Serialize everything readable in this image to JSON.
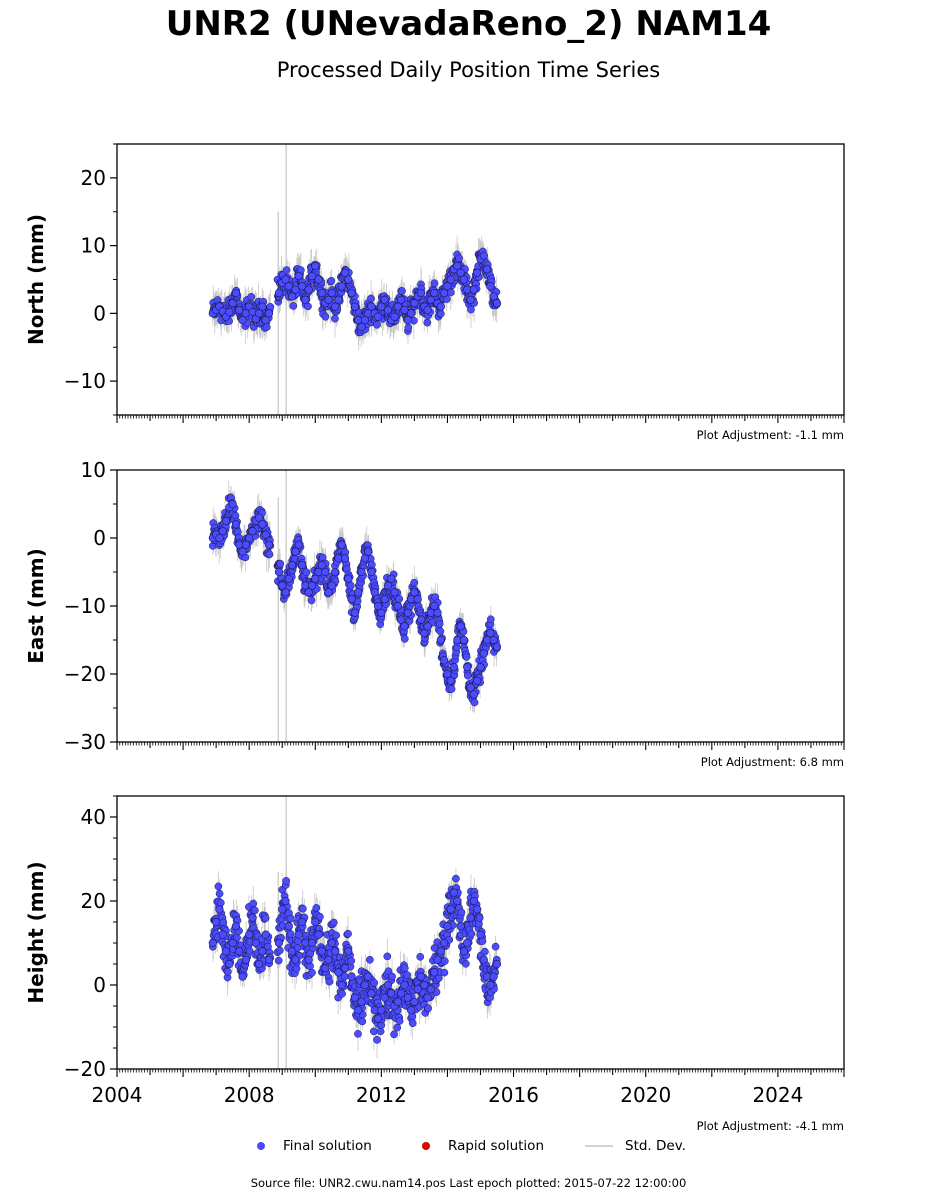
{
  "title": "UNR2 (UNevadaReno_2) NAM14",
  "subtitle": "Processed Daily Position Time Series",
  "legend": {
    "final": "Final solution",
    "rapid": "Rapid solution",
    "stddev": "Std. Dev."
  },
  "source_text": "Source file: UNR2.cwu.nam14.pos  Last epoch plotted: 2015-07-22 12:00:00",
  "colors": {
    "final": "#4b4bff",
    "rapid": "#e00000",
    "stddev": "#c8c8c8"
  },
  "chart_data": [
    {
      "type": "scatter",
      "ylabel": "North (mm)",
      "xlim": [
        2004,
        2026
      ],
      "ylim": [
        -15,
        25
      ],
      "yticks": [
        -10,
        0,
        10,
        20
      ],
      "ytick_labels": [
        "−10",
        "0",
        "10",
        "20"
      ],
      "adjustment": "Plot Adjustment: -1.1 mm",
      "x_labels_shown": false,
      "series": [
        {
          "name": "Final solution",
          "x": [
            2006.9,
            2007.0,
            2007.1,
            2007.2,
            2007.3,
            2007.4,
            2007.5,
            2007.6,
            2007.7,
            2007.8,
            2007.9,
            2008.0,
            2008.1,
            2008.2,
            2008.3,
            2008.4,
            2008.5,
            2008.6,
            2008.9,
            2009.0,
            2009.1,
            2009.2,
            2009.3,
            2009.4,
            2009.5,
            2009.6,
            2009.7,
            2009.8,
            2009.9,
            2010.0,
            2010.1,
            2010.2,
            2010.3,
            2010.4,
            2010.5,
            2010.6,
            2010.7,
            2010.8,
            2010.9,
            2011.0,
            2011.1,
            2011.2,
            2011.3,
            2011.4,
            2011.5,
            2011.6,
            2011.7,
            2011.8,
            2011.9,
            2012.0,
            2012.1,
            2012.2,
            2012.3,
            2012.4,
            2012.5,
            2012.6,
            2012.7,
            2012.8,
            2012.9,
            2013.0,
            2013.1,
            2013.2,
            2013.3,
            2013.4,
            2013.5,
            2013.6,
            2013.7,
            2013.8,
            2013.9,
            2014.0,
            2014.1,
            2014.2,
            2014.3,
            2014.4,
            2014.5,
            2014.6,
            2014.7,
            2014.8,
            2014.9,
            2015.0,
            2015.1,
            2015.2,
            2015.3,
            2015.4,
            2015.5
          ],
          "y": [
            0.0,
            0.5,
            1.0,
            0.3,
            -0.5,
            0.2,
            1.5,
            3.0,
            0.5,
            -1.0,
            0.0,
            1.0,
            0.2,
            -0.8,
            0.0,
            1.0,
            -1.0,
            0.0,
            3.0,
            4.5,
            5.0,
            4.0,
            2.5,
            3.5,
            5.5,
            4.0,
            2.0,
            3.5,
            5.5,
            7.0,
            5.0,
            3.0,
            1.5,
            2.0,
            3.0,
            1.0,
            2.0,
            4.0,
            6.0,
            5.0,
            3.0,
            1.0,
            -1.0,
            -2.0,
            -1.0,
            0.0,
            1.0,
            0.0,
            -0.5,
            1.0,
            2.0,
            0.5,
            -1.0,
            -0.5,
            1.0,
            2.0,
            0.5,
            -1.0,
            0.0,
            1.5,
            2.5,
            3.0,
            1.0,
            0.5,
            2.0,
            3.0,
            1.5,
            1.0,
            3.0,
            4.0,
            5.0,
            6.5,
            7.0,
            6.0,
            5.0,
            3.5,
            2.0,
            3.5,
            6.0,
            8.0,
            8.5,
            6.5,
            4.0,
            2.5,
            1.5
          ]
        }
      ]
    },
    {
      "type": "scatter",
      "ylabel": "East (mm)",
      "xlim": [
        2004,
        2026
      ],
      "ylim": [
        -30,
        10
      ],
      "yticks": [
        -30,
        -20,
        -10,
        0,
        10
      ],
      "ytick_labels": [
        "−30",
        "−20",
        "−10",
        "0",
        "10"
      ],
      "adjustment": "Plot Adjustment: 6.8 mm",
      "x_labels_shown": false,
      "series": [
        {
          "name": "Final solution",
          "x": [
            2006.9,
            2007.0,
            2007.1,
            2007.2,
            2007.3,
            2007.4,
            2007.5,
            2007.6,
            2007.7,
            2007.8,
            2007.9,
            2008.0,
            2008.1,
            2008.2,
            2008.3,
            2008.4,
            2008.5,
            2008.6,
            2008.9,
            2009.0,
            2009.1,
            2009.2,
            2009.3,
            2009.4,
            2009.5,
            2009.6,
            2009.7,
            2009.8,
            2009.9,
            2010.0,
            2010.1,
            2010.2,
            2010.3,
            2010.4,
            2010.5,
            2010.6,
            2010.7,
            2010.8,
            2010.9,
            2011.0,
            2011.1,
            2011.2,
            2011.3,
            2011.4,
            2011.5,
            2011.6,
            2011.7,
            2011.8,
            2011.9,
            2012.0,
            2012.1,
            2012.2,
            2012.3,
            2012.4,
            2012.5,
            2012.6,
            2012.7,
            2012.8,
            2012.9,
            2013.0,
            2013.1,
            2013.2,
            2013.3,
            2013.4,
            2013.5,
            2013.6,
            2013.7,
            2013.8,
            2013.9,
            2014.0,
            2014.1,
            2014.2,
            2014.3,
            2014.4,
            2014.5,
            2014.6,
            2014.7,
            2014.8,
            2014.9,
            2015.0,
            2015.1,
            2015.2,
            2015.3,
            2015.4,
            2015.5
          ],
          "y": [
            0.0,
            0.5,
            0.0,
            1.0,
            2.5,
            4.5,
            5.0,
            2.0,
            -1.0,
            -2.0,
            -1.0,
            0.0,
            1.0,
            2.5,
            3.0,
            2.0,
            0.5,
            -1.0,
            -5.0,
            -7.0,
            -8.0,
            -6.0,
            -4.0,
            -2.0,
            -1.0,
            -4.0,
            -7.0,
            -8.0,
            -7.0,
            -6.0,
            -5.0,
            -4.0,
            -5.0,
            -8.0,
            -7.0,
            -5.0,
            -3.0,
            -1.0,
            -3.0,
            -6.0,
            -9.0,
            -11.0,
            -8.0,
            -5.0,
            -3.0,
            -2.0,
            -5.0,
            -8.0,
            -10.0,
            -11.0,
            -9.0,
            -7.0,
            -6.0,
            -8.0,
            -10.0,
            -12.0,
            -13.0,
            -11.0,
            -9.0,
            -8.0,
            -9.0,
            -12.0,
            -14.0,
            -13.0,
            -11.0,
            -10.0,
            -11.0,
            -15.0,
            -18.0,
            -20.0,
            -21.0,
            -19.0,
            -15.0,
            -13.0,
            -15.0,
            -19.0,
            -22.0,
            -23.0,
            -21.0,
            -19.0,
            -17.0,
            -15.0,
            -14.0,
            -15.0,
            -16.0
          ]
        }
      ]
    },
    {
      "type": "scatter",
      "ylabel": "Height (mm)",
      "xlim": [
        2004,
        2026
      ],
      "ylim": [
        -20,
        45
      ],
      "yticks": [
        -20,
        0,
        20,
        40
      ],
      "ytick_labels": [
        "−20",
        "0",
        "20",
        "40"
      ],
      "adjustment": "Plot Adjustment: -4.1 mm",
      "x_labels_shown": true,
      "xticks": [
        2004,
        2008,
        2012,
        2016,
        2020,
        2024
      ],
      "xtick_labels": [
        "2004",
        "2008",
        "2012",
        "2016",
        "2020",
        "2024"
      ],
      "series": [
        {
          "name": "Final solution",
          "x": [
            2006.9,
            2007.0,
            2007.1,
            2007.2,
            2007.3,
            2007.4,
            2007.5,
            2007.6,
            2007.7,
            2007.8,
            2007.9,
            2008.0,
            2008.1,
            2008.2,
            2008.3,
            2008.4,
            2008.5,
            2008.6,
            2008.9,
            2009.0,
            2009.1,
            2009.2,
            2009.3,
            2009.4,
            2009.5,
            2009.6,
            2009.7,
            2009.8,
            2009.9,
            2010.0,
            2010.1,
            2010.2,
            2010.3,
            2010.4,
            2010.5,
            2010.6,
            2010.7,
            2010.8,
            2010.9,
            2011.0,
            2011.1,
            2011.2,
            2011.3,
            2011.4,
            2011.5,
            2011.6,
            2011.7,
            2011.8,
            2011.9,
            2012.0,
            2012.1,
            2012.2,
            2012.3,
            2012.4,
            2012.5,
            2012.6,
            2012.7,
            2012.8,
            2012.9,
            2013.0,
            2013.1,
            2013.2,
            2013.3,
            2013.4,
            2013.5,
            2013.6,
            2013.7,
            2013.8,
            2013.9,
            2014.0,
            2014.1,
            2014.2,
            2014.3,
            2014.4,
            2014.5,
            2014.6,
            2014.7,
            2014.8,
            2014.9,
            2015.0,
            2015.1,
            2015.2,
            2015.3,
            2015.4,
            2015.5
          ],
          "y": [
            10.0,
            15.0,
            18.0,
            12.0,
            8.0,
            5.0,
            10.0,
            14.0,
            8.0,
            2.0,
            6.0,
            12.0,
            16.0,
            10.0,
            5.0,
            8.0,
            12.0,
            6.0,
            10.0,
            18.0,
            20.0,
            14.0,
            8.0,
            6.0,
            12.0,
            15.0,
            10.0,
            6.0,
            10.0,
            15.0,
            12.0,
            8.0,
            4.0,
            6.0,
            10.0,
            8.0,
            3.0,
            0.0,
            4.0,
            8.0,
            2.0,
            -3.0,
            -6.0,
            -4.0,
            0.0,
            2.0,
            -2.0,
            -6.0,
            -8.0,
            -6.0,
            -3.0,
            0.0,
            -2.0,
            -5.0,
            -4.0,
            -2.0,
            0.0,
            -3.0,
            -6.0,
            -4.0,
            -1.0,
            2.0,
            0.0,
            -3.0,
            -1.0,
            3.0,
            6.0,
            8.0,
            10.0,
            14.0,
            18.0,
            22.0,
            20.0,
            14.0,
            8.0,
            10.0,
            16.0,
            20.0,
            18.0,
            12.0,
            6.0,
            2.0,
            0.0,
            2.0,
            5.0
          ]
        }
      ]
    }
  ]
}
